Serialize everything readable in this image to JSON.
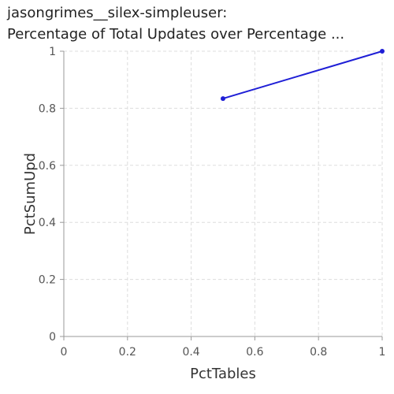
{
  "chart_data": {
    "type": "line",
    "title_line1": "jasongrimes__silex-simpleuser:",
    "title_line2": "Percentage of Total Updates over Percentage ...",
    "xlabel": "PctTables",
    "ylabel": "PctSumUpd",
    "xlim": [
      0,
      1
    ],
    "ylim": [
      0,
      1
    ],
    "x_ticks": [
      "0",
      "0.2",
      "0.4",
      "0.6",
      "0.8",
      "1"
    ],
    "y_ticks": [
      "0",
      "0.2",
      "0.4",
      "0.6",
      "0.8",
      "1"
    ],
    "grid": true,
    "series": [
      {
        "x": [
          0.5,
          1.0
        ],
        "y": [
          0.834,
          1.0
        ],
        "color": "#1f1fd6"
      }
    ]
  }
}
